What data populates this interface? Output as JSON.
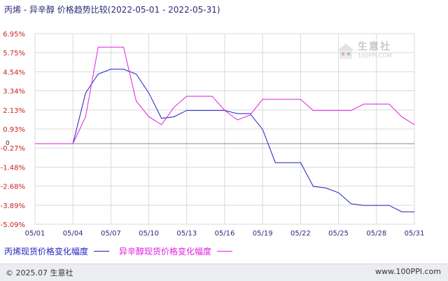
{
  "header": {
    "title": "丙烯 - 异辛醇 价格趋势比较",
    "date_range": "(2022-05-01 - 2022-05-31)"
  },
  "watermark": {
    "brand": "生意社",
    "url": "100PPI.COM"
  },
  "footer": {
    "copyright": "© 2025.07 生意社",
    "site": "www.100PPI.com"
  },
  "chart_data": {
    "type": "line",
    "title": "丙烯 - 异辛醇 价格趋势比较",
    "subtitle": "(2022-05-01 - 2022-05-31)",
    "xlabel": "",
    "ylabel": "",
    "x": [
      "05/01",
      "05/02",
      "05/03",
      "05/04",
      "05/05",
      "05/06",
      "05/07",
      "05/08",
      "05/09",
      "05/10",
      "05/11",
      "05/12",
      "05/13",
      "05/14",
      "05/15",
      "05/16",
      "05/17",
      "05/18",
      "05/19",
      "05/20",
      "05/21",
      "05/22",
      "05/23",
      "05/24",
      "05/25",
      "05/26",
      "05/27",
      "05/28",
      "05/29",
      "05/30",
      "05/31"
    ],
    "x_ticks": [
      "05/01",
      "05/04",
      "05/07",
      "05/10",
      "05/13",
      "05/16",
      "05/19",
      "05/22",
      "05/25",
      "05/28",
      "05/31"
    ],
    "y_ticks": [
      "6.95%",
      "5.75%",
      "4.54%",
      "3.34%",
      "2.13%",
      "0.93%",
      "-0.27%",
      "-1.48%",
      "-2.68%",
      "-3.89%",
      "-5.09%"
    ],
    "y_tick_values": [
      6.95,
      5.75,
      4.54,
      3.34,
      2.13,
      0.93,
      -0.27,
      -1.48,
      -2.68,
      -3.89,
      -5.09
    ],
    "y_zero_label": "0",
    "ylim": [
      -5.09,
      6.95
    ],
    "grid": true,
    "series": [
      {
        "name": "丙烯现货价格变化幅度",
        "color": "#1f1fbf",
        "values": [
          0,
          0,
          0,
          0,
          3.2,
          4.4,
          4.7,
          4.7,
          4.4,
          3.2,
          1.6,
          1.7,
          2.1,
          2.1,
          2.1,
          2.1,
          1.9,
          1.9,
          0.9,
          -1.2,
          -1.2,
          -1.2,
          -2.7,
          -2.8,
          -3.1,
          -3.8,
          -3.9,
          -3.9,
          -3.9,
          -4.3,
          -4.3
        ]
      },
      {
        "name": "异辛醇现货价格变化幅度",
        "color": "#e020e0",
        "values": [
          0,
          0,
          0,
          0,
          1.7,
          6.1,
          6.1,
          6.1,
          2.7,
          1.7,
          1.2,
          2.3,
          3.0,
          3.0,
          3.0,
          2.1,
          1.5,
          1.8,
          2.8,
          2.8,
          2.8,
          2.8,
          2.1,
          2.1,
          2.1,
          2.1,
          2.5,
          2.5,
          2.5,
          1.7,
          1.2
        ]
      }
    ],
    "legend": "bottom-left"
  }
}
